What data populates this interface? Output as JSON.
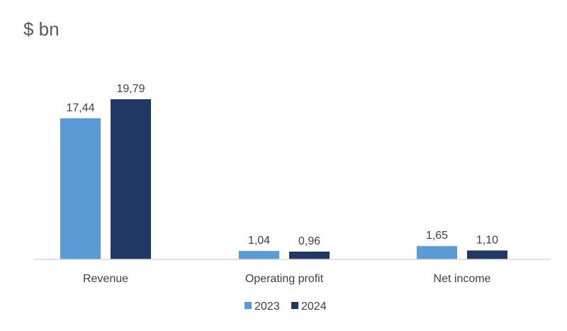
{
  "chart_data": {
    "type": "bar",
    "title": "$ bn",
    "categories": [
      "Revenue",
      "Operating profit",
      "Net income"
    ],
    "series": [
      {
        "name": "2023",
        "color": "#5b9bd5",
        "values": [
          17.44,
          1.04,
          1.65
        ],
        "labels": [
          "17,44",
          "1,04",
          "1,65"
        ]
      },
      {
        "name": "2024",
        "color": "#203864",
        "values": [
          19.79,
          0.96,
          1.1
        ],
        "labels": [
          "19,79",
          "0,96",
          "1,10"
        ]
      }
    ],
    "ylim": [
      0,
      19.79
    ],
    "grid": false,
    "legend_position": "bottom-center",
    "axis_color": "#d9d9d9"
  }
}
